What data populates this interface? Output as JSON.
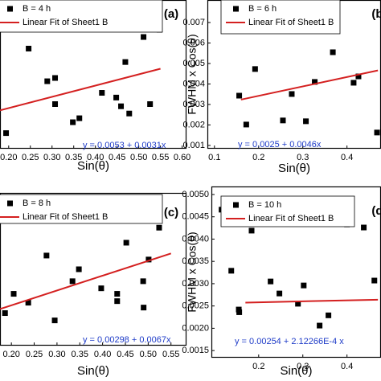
{
  "chart_data": [
    {
      "type": "scatter",
      "panel_label": "(a)",
      "xlabel": "Sin(θ)",
      "equation": "y = 0.0053 + 0.0031x",
      "legend": "upper left",
      "xlim": [
        0.18,
        0.61
      ],
      "ylim": [
        0.0048,
        0.0089
      ],
      "xticks": [
        {
          "value": 0.2,
          "label": "0.20"
        },
        {
          "value": 0.25,
          "label": "0.25"
        },
        {
          "value": 0.3,
          "label": "0.30"
        },
        {
          "value": 0.35,
          "label": "0.35"
        },
        {
          "value": 0.4,
          "label": "0.40"
        },
        {
          "value": 0.45,
          "label": "0.45"
        },
        {
          "value": 0.5,
          "label": "0.50"
        },
        {
          "value": 0.55,
          "label": "0.55"
        },
        {
          "value": 0.6,
          "label": "0.60"
        }
      ],
      "series": [
        {
          "name": "B = 4 h",
          "type": "scatter",
          "color": "#000000",
          "x": [
            0.194,
            0.246,
            0.289,
            0.307,
            0.307,
            0.348,
            0.363,
            0.415,
            0.448,
            0.459,
            0.469,
            0.478,
            0.511,
            0.526,
            0.548
          ],
          "values": [
            0.00523,
            0.00756,
            0.00666,
            0.00675,
            0.00603,
            0.00553,
            0.00564,
            0.00634,
            0.00621,
            0.00597,
            0.00719,
            0.00577,
            0.00788,
            0.00603,
            0.00808
          ]
        },
        {
          "name": "Linear Fit of Sheet1 B",
          "type": "line",
          "color": "#d42020",
          "x": [
            0.18,
            0.55
          ],
          "values": [
            0.005858,
            0.007005
          ]
        }
      ]
    },
    {
      "type": "scatter",
      "panel_label": "(b)",
      "xlabel": "Sin(θ)",
      "ylabel": "FWHM x Cos(θ)",
      "equation": "y = 0.0025 + 0.0046x",
      "legend": "upper left",
      "xlim": [
        0.084,
        0.477
      ],
      "ylim": [
        0.00084,
        0.0081
      ],
      "xticks": [
        0.1,
        0.2,
        0.3,
        0.4
      ],
      "yticks": [
        0.001,
        0.002,
        0.003,
        0.004,
        0.005,
        0.006,
        0.007
      ],
      "series": [
        {
          "name": "B = 6 h",
          "type": "scatter",
          "color": "#000000",
          "x": [
            0.156,
            0.172,
            0.192,
            0.255,
            0.275,
            0.307,
            0.327,
            0.368,
            0.415,
            0.426,
            0.468
          ],
          "values": [
            0.00343,
            0.00202,
            0.00473,
            0.00222,
            0.00351,
            0.00218,
            0.0041,
            0.00555,
            0.00406,
            0.00437,
            0.00163
          ]
        },
        {
          "name": "Linear Fit of Sheet1 B",
          "type": "line",
          "color": "#d42020",
          "x": [
            0.16,
            0.47
          ],
          "values": [
            0.003236,
            0.004662
          ]
        }
      ]
    },
    {
      "type": "scatter",
      "panel_label": "(c)",
      "xlabel": "Sin(θ)",
      "equation": "y = 0.00298 + 0.0067x",
      "legend": "upper left",
      "xlim": [
        0.175,
        0.584
      ],
      "ylim": [
        0.0025,
        0.0094
      ],
      "xticks": [
        {
          "value": 0.2,
          "label": "0.20"
        },
        {
          "value": 0.25,
          "label": "0.25"
        },
        {
          "value": 0.3,
          "label": "0.30"
        },
        {
          "value": 0.35,
          "label": "0.35"
        },
        {
          "value": 0.4,
          "label": "0.40"
        },
        {
          "value": 0.45,
          "label": "0.45"
        },
        {
          "value": 0.5,
          "label": "0.50"
        },
        {
          "value": 0.55,
          "label": "0.55"
        }
      ],
      "series": [
        {
          "name": "B = 8 h",
          "type": "scatter",
          "color": "#000000",
          "x": [
            0.186,
            0.205,
            0.237,
            0.277,
            0.295,
            0.334,
            0.348,
            0.397,
            0.432,
            0.432,
            0.445,
            0.452,
            0.489,
            0.49,
            0.501,
            0.524
          ],
          "values": [
            0.00397,
            0.00484,
            0.00444,
            0.00657,
            0.00364,
            0.00541,
            0.00595,
            0.00509,
            0.00451,
            0.00484,
            0.00823,
            0.00715,
            0.00541,
            0.00422,
            0.00639,
            0.00783
          ]
        },
        {
          "name": "Linear Fit of Sheet1 B",
          "type": "line",
          "color": "#d42020",
          "x": [
            0.175,
            0.55
          ],
          "values": [
            0.004153,
            0.006665
          ]
        }
      ]
    },
    {
      "type": "scatter",
      "panel_label": "(d)",
      "xlabel": "Sin(θ)",
      "ylabel": "FWHM x Cos(θ)",
      "equation": "y = 0.00254 + 2.12266E-4 x",
      "legend": "upper left",
      "xlim": [
        0.093,
        0.477
      ],
      "ylim": [
        0.00134,
        0.00518
      ],
      "xticks": [
        0.2,
        0.3,
        0.4
      ],
      "yticks": [
        {
          "value": 0.0015,
          "label": "0.0015"
        },
        {
          "value": 0.002,
          "label": "0.0020"
        },
        {
          "value": 0.0025,
          "label": "0.0025"
        },
        {
          "value": 0.003,
          "label": "0.0030"
        },
        {
          "value": 0.0035,
          "label": "0.0035"
        },
        {
          "value": 0.004,
          "label": "0.0040"
        },
        {
          "value": 0.0045,
          "label": "0.0045"
        },
        {
          "value": 0.005,
          "label": "0.0050"
        }
      ],
      "series": [
        {
          "name": "B = 10 h",
          "type": "scatter",
          "color": "#000000",
          "x": [
            0.116,
            0.138,
            0.155,
            0.156,
            0.184,
            0.227,
            0.247,
            0.289,
            0.302,
            0.338,
            0.358,
            0.4,
            0.438,
            0.462
          ],
          "values": [
            0.00466,
            0.00329,
            0.00242,
            0.00236,
            0.00419,
            0.00305,
            0.00278,
            0.00255,
            0.00296,
            0.00206,
            0.00229,
            0.00433,
            0.00426,
            0.00307
          ]
        },
        {
          "name": "Linear Fit of Sheet1 B",
          "type": "line",
          "color": "#d42020",
          "x": [
            0.17,
            0.47
          ],
          "values": [
            0.002576,
            0.00264
          ]
        }
      ]
    }
  ]
}
